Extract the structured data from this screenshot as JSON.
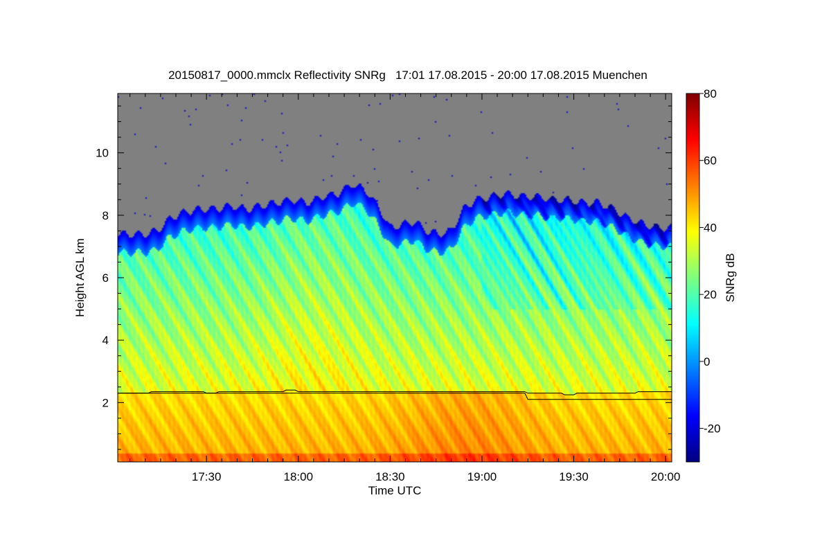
{
  "chart_data": {
    "type": "heatmap",
    "title": "20150817_0000.mmclx Reflectivity SNRg   17:01 17.08.2015 - 20:00 17.08.2015 Muenchen",
    "xlabel": "Time UTC",
    "ylabel": "Height AGL km",
    "x_range_minutes_utc": [
      1021,
      1202
    ],
    "x_ticks": [
      {
        "label": "17:30",
        "minutes_utc": 1050
      },
      {
        "label": "18:00",
        "minutes_utc": 1080
      },
      {
        "label": "18:30",
        "minutes_utc": 1110
      },
      {
        "label": "19:00",
        "minutes_utc": 1140
      },
      {
        "label": "19:30",
        "minutes_utc": 1170
      },
      {
        "label": "20:00",
        "minutes_utc": 1200
      }
    ],
    "ylim": [
      0.1,
      11.9
    ],
    "y_ticks": [
      2,
      4,
      6,
      8,
      10
    ],
    "colorbar": {
      "label": "SNRg dB",
      "range": [
        -30,
        80
      ],
      "ticks": [
        -20,
        0,
        20,
        40,
        60,
        80
      ],
      "colors": [
        "#00007f",
        "#0000ff",
        "#007fff",
        "#00ffff",
        "#7fff7f",
        "#ffff00",
        "#ff7f00",
        "#ff0000",
        "#7f0000"
      ]
    },
    "missing_color": "#808080",
    "cloud_top_km": [
      [
        1021,
        7.4
      ],
      [
        1025,
        7.4
      ],
      [
        1030,
        7.4
      ],
      [
        1034,
        7.5
      ],
      [
        1038,
        7.9
      ],
      [
        1043,
        8.1
      ],
      [
        1048,
        8.2
      ],
      [
        1053,
        8.2
      ],
      [
        1058,
        8.3
      ],
      [
        1063,
        8.2
      ],
      [
        1068,
        8.3
      ],
      [
        1073,
        8.4
      ],
      [
        1078,
        8.5
      ],
      [
        1083,
        8.4
      ],
      [
        1088,
        8.6
      ],
      [
        1093,
        8.7
      ],
      [
        1098,
        9.0
      ],
      [
        1102,
        8.8
      ],
      [
        1106,
        8.3
      ],
      [
        1110,
        7.6
      ],
      [
        1114,
        7.7
      ],
      [
        1118,
        7.8
      ],
      [
        1122,
        7.5
      ],
      [
        1126,
        7.4
      ],
      [
        1130,
        7.5
      ],
      [
        1134,
        8.2
      ],
      [
        1138,
        8.5
      ],
      [
        1143,
        8.6
      ],
      [
        1148,
        8.7
      ],
      [
        1153,
        8.6
      ],
      [
        1158,
        8.6
      ],
      [
        1163,
        8.5
      ],
      [
        1168,
        8.5
      ],
      [
        1173,
        8.4
      ],
      [
        1178,
        8.4
      ],
      [
        1183,
        8.2
      ],
      [
        1188,
        7.9
      ],
      [
        1193,
        7.7
      ],
      [
        1198,
        7.6
      ],
      [
        1202,
        7.6
      ]
    ],
    "boundary_line_1_km": [
      [
        1021,
        2.3
      ],
      [
        1031,
        2.3
      ],
      [
        1032,
        2.35
      ],
      [
        1049,
        2.35
      ],
      [
        1050,
        2.3
      ],
      [
        1053,
        2.3
      ],
      [
        1054,
        2.35
      ],
      [
        1075,
        2.35
      ],
      [
        1076,
        2.4
      ],
      [
        1079,
        2.4
      ],
      [
        1080,
        2.35
      ],
      [
        1154,
        2.35
      ],
      [
        1155,
        2.3
      ],
      [
        1166,
        2.3
      ],
      [
        1167,
        2.25
      ],
      [
        1170,
        2.25
      ],
      [
        1171,
        2.3
      ],
      [
        1190,
        2.3
      ],
      [
        1191,
        2.35
      ],
      [
        1202,
        2.35
      ]
    ],
    "boundary_line_2_km": [
      [
        1021,
        2.3
      ],
      [
        1154,
        2.3
      ],
      [
        1155,
        2.1
      ],
      [
        1202,
        2.1
      ]
    ]
  }
}
